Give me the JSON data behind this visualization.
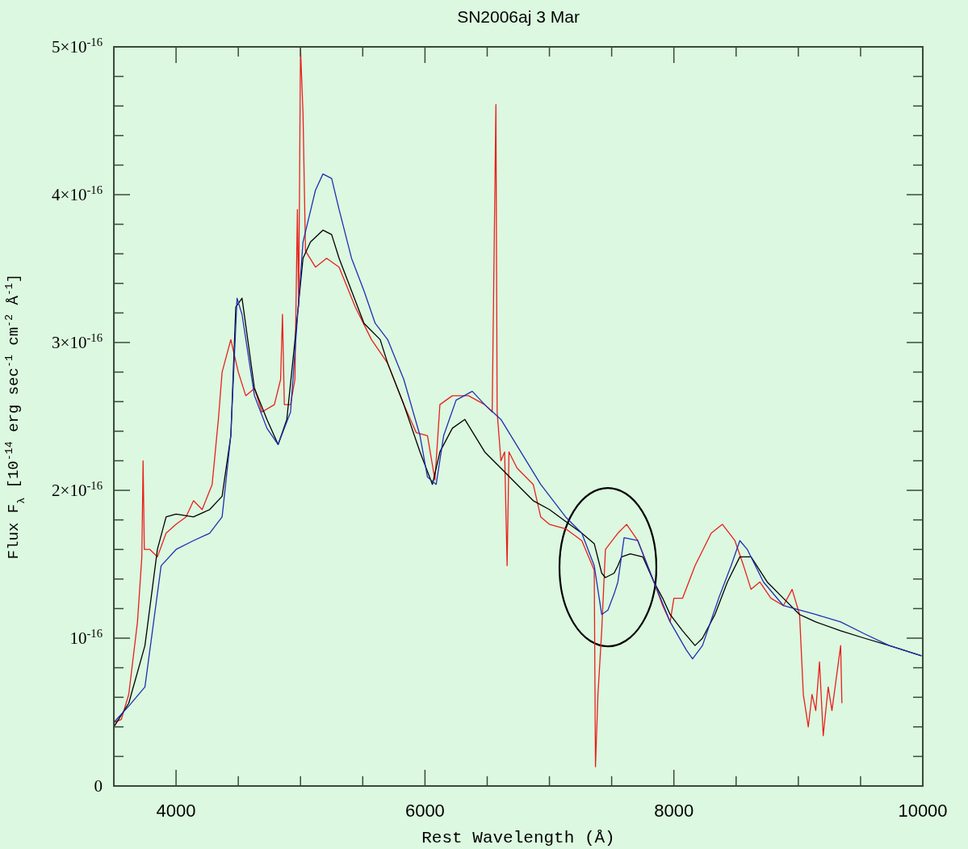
{
  "chart_data": {
    "type": "line",
    "title": "SN2006aj 3 Mar",
    "xlabel": "Rest Wavelength (Å)",
    "ylabel": "Flux F$_{λ}$ [10$^{-14}$ erg sec$^{-1}$ cm$^{-2}$ Å$^{-1}$]",
    "xlim": [
      3500,
      10000
    ],
    "ylim": [
      0,
      5e-16
    ],
    "xticks": [
      4000,
      {
        "value": 4500,
        "label": null
      },
      {
        "value": 5000,
        "label": null
      },
      {
        "value": 5500,
        "label": null
      },
      6000,
      {
        "value": 6500,
        "label": null
      },
      {
        "value": 7000,
        "label": null
      },
      {
        "value": 7500,
        "label": null
      },
      8000,
      {
        "value": 8500,
        "label": null
      },
      {
        "value": 9000,
        "label": null
      },
      {
        "value": 9500,
        "label": null
      },
      10000
    ],
    "yticks": [
      0,
      {
        "value": 2e-17,
        "label": null
      },
      {
        "value": 4e-17,
        "label": null
      },
      {
        "value": 6e-17,
        "label": null
      },
      {
        "value": 8e-17,
        "label": null
      },
      {
        "value": 1e-16,
        "label": "10$^{-16}$"
      },
      {
        "value": 1.2e-16,
        "label": null
      },
      {
        "value": 1.4e-16,
        "label": null
      },
      {
        "value": 1.6e-16,
        "label": null
      },
      {
        "value": 1.8e-16,
        "label": null
      },
      {
        "value": 2e-16,
        "label": "2×10$^{-16}$"
      },
      {
        "value": 2.2e-16,
        "label": null
      },
      {
        "value": 2.4e-16,
        "label": null
      },
      {
        "value": 2.6e-16,
        "label": null
      },
      {
        "value": 2.8e-16,
        "label": null
      },
      {
        "value": 3e-16,
        "label": "3×10$^{-16}$"
      },
      {
        "value": 3.2e-16,
        "label": null
      },
      {
        "value": 3.4e-16,
        "label": null
      },
      {
        "value": 3.6e-16,
        "label": null
      },
      {
        "value": 3.8e-16,
        "label": null
      },
      {
        "value": 4e-16,
        "label": "4×10$^{-16}$"
      },
      {
        "value": 4.2e-16,
        "label": null
      },
      {
        "value": 4.4e-16,
        "label": null
      },
      {
        "value": 4.6e-16,
        "label": null
      },
      {
        "value": 4.8e-16,
        "label": null
      },
      {
        "value": 5e-16,
        "label": "5×10$^{-16}$"
      }
    ],
    "grid": false,
    "line_style": "solid",
    "marker": "none",
    "series": [
      {
        "color": "#e8201c",
        "x": [
          3500,
          3560,
          3620,
          3690,
          3725,
          3735,
          3745,
          3790,
          3850,
          3920,
          4000,
          4080,
          4140,
          4210,
          4290,
          4340,
          4370,
          4440,
          4500,
          4560,
          4630,
          4690,
          4790,
          4840,
          4855,
          4870,
          4920,
          4955,
          4975,
          4985,
          5000,
          5020,
          5040,
          5120,
          5210,
          5310,
          5440,
          5570,
          5700,
          5830,
          5930,
          6020,
          6080,
          6120,
          6220,
          6350,
          6480,
          6540,
          6570,
          6580,
          6610,
          6640,
          6660,
          6675,
          6740,
          6870,
          6930,
          7000,
          7130,
          7260,
          7360,
          7370,
          7390,
          7420,
          7450,
          7550,
          7620,
          7710,
          7840,
          7910,
          7970,
          8000,
          8070,
          8170,
          8300,
          8390,
          8490,
          8560,
          8620,
          8690,
          8780,
          8880,
          8950,
          9010,
          9040,
          9080,
          9110,
          9140,
          9170,
          9200,
          9240,
          9270,
          9340,
          9350
        ],
        "values": [
          4.3e-17,
          4.5e-17,
          6.2e-17,
          1.11e-16,
          1.55e-16,
          2.2e-16,
          1.6e-16,
          1.6e-16,
          1.55e-16,
          1.71e-16,
          1.77e-16,
          1.82e-16,
          1.93e-16,
          1.87e-16,
          2.04e-16,
          2.48e-16,
          2.8e-16,
          3.02e-16,
          2.8e-16,
          2.64e-16,
          2.69e-16,
          2.53e-16,
          2.58e-16,
          2.75e-16,
          3.19e-16,
          2.58e-16,
          2.58e-16,
          2.75e-16,
          3.9e-16,
          3.24e-16,
          4.99e-16,
          4.55e-16,
          3.62e-16,
          3.51e-16,
          3.57e-16,
          3.51e-16,
          3.24e-16,
          3.02e-16,
          2.86e-16,
          2.58e-16,
          2.39e-16,
          2.37e-16,
          2.07e-16,
          2.58e-16,
          2.64e-16,
          2.64e-16,
          2.58e-16,
          2.53e-16,
          4.61e-16,
          2.53e-16,
          2.2e-16,
          2.26e-16,
          1.49e-16,
          2.26e-16,
          2.15e-16,
          2.04e-16,
          1.82e-16,
          1.77e-16,
          1.74e-16,
          1.66e-16,
          1.46e-16,
          1.3e-17,
          6.2e-17,
          1.05e-16,
          1.6e-16,
          1.71e-16,
          1.77e-16,
          1.66e-16,
          1.38e-16,
          1.22e-16,
          1.11e-16,
          1.27e-16,
          1.27e-16,
          1.49e-16,
          1.71e-16,
          1.77e-16,
          1.66e-16,
          1.49e-16,
          1.33e-16,
          1.38e-16,
          1.27e-16,
          1.22e-16,
          1.33e-16,
          1.16e-16,
          6.2e-17,
          4e-17,
          6.2e-17,
          5.1e-17,
          8.4e-17,
          3.4e-17,
          6.7e-17,
          5.1e-17,
          9.5e-17,
          5.6e-17
        ]
      },
      {
        "color": "#000000",
        "x": [
          3500,
          3620,
          3750,
          3850,
          3920,
          4000,
          4140,
          4270,
          4370,
          4440,
          4480,
          4530,
          4630,
          4730,
          4820,
          4890,
          4950,
          5020,
          5080,
          5180,
          5250,
          5310,
          5410,
          5510,
          5640,
          5700,
          5830,
          5960,
          6060,
          6120,
          6220,
          6320,
          6480,
          6610,
          6740,
          6870,
          7000,
          7130,
          7260,
          7360,
          7420,
          7450,
          7520,
          7550,
          7580,
          7650,
          7750,
          7840,
          7910,
          7970,
          8070,
          8170,
          8230,
          8330,
          8430,
          8530,
          8620,
          8750,
          8880,
          9010,
          9140,
          9340,
          9530,
          9730,
          9990
        ],
        "values": [
          4e-17,
          5.6e-17,
          9.5e-17,
          1.6e-16,
          1.82e-16,
          1.84e-16,
          1.82e-16,
          1.87e-16,
          1.96e-16,
          2.37e-16,
          3.24e-16,
          3.3e-16,
          2.69e-16,
          2.48e-16,
          2.31e-16,
          2.48e-16,
          2.97e-16,
          3.57e-16,
          3.68e-16,
          3.76e-16,
          3.73e-16,
          3.57e-16,
          3.35e-16,
          3.13e-16,
          3.02e-16,
          2.86e-16,
          2.58e-16,
          2.26e-16,
          2.04e-16,
          2.26e-16,
          2.42e-16,
          2.48e-16,
          2.26e-16,
          2.15e-16,
          2.04e-16,
          1.93e-16,
          1.87e-16,
          1.79e-16,
          1.71e-16,
          1.64e-16,
          1.44e-16,
          1.41e-16,
          1.44e-16,
          1.49e-16,
          1.55e-16,
          1.57e-16,
          1.55e-16,
          1.38e-16,
          1.27e-16,
          1.16e-16,
          1.05e-16,
          9.5e-17,
          1e-16,
          1.16e-16,
          1.38e-16,
          1.55e-16,
          1.55e-16,
          1.38e-16,
          1.27e-16,
          1.16e-16,
          1.11e-16,
          1.05e-16,
          1e-16,
          9.5e-17,
          8.8e-17
        ]
      },
      {
        "color": "#2030b0",
        "x": [
          3500,
          3620,
          3750,
          3880,
          4000,
          4140,
          4270,
          4370,
          4440,
          4490,
          4530,
          4630,
          4730,
          4820,
          4920,
          5020,
          5120,
          5180,
          5250,
          5310,
          5410,
          5510,
          5600,
          5700,
          5830,
          5960,
          6020,
          6090,
          6150,
          6250,
          6380,
          6480,
          6610,
          6770,
          6930,
          7130,
          7260,
          7360,
          7420,
          7470,
          7520,
          7550,
          7600,
          7710,
          7840,
          7970,
          8100,
          8150,
          8230,
          8360,
          8460,
          8530,
          8590,
          8720,
          8880,
          9010,
          9140,
          9340,
          9530,
          9730,
          9990
        ],
        "values": [
          4.3e-17,
          5.4e-17,
          6.7e-17,
          1.49e-16,
          1.6e-16,
          1.66e-16,
          1.71e-16,
          1.82e-16,
          2.37e-16,
          3.3e-16,
          3.19e-16,
          2.64e-16,
          2.42e-16,
          2.31e-16,
          2.53e-16,
          3.68e-16,
          4.03e-16,
          4.14e-16,
          4.11e-16,
          3.9e-16,
          3.57e-16,
          3.35e-16,
          3.13e-16,
          3.02e-16,
          2.75e-16,
          2.37e-16,
          2.09e-16,
          2.04e-16,
          2.37e-16,
          2.61e-16,
          2.67e-16,
          2.58e-16,
          2.48e-16,
          2.26e-16,
          2.04e-16,
          1.82e-16,
          1.71e-16,
          1.49e-16,
          1.16e-16,
          1.19e-16,
          1.3e-16,
          1.38e-16,
          1.68e-16,
          1.66e-16,
          1.38e-16,
          1.11e-16,
          9.2e-17,
          8.6e-17,
          9.5e-17,
          1.27e-16,
          1.49e-16,
          1.66e-16,
          1.6e-16,
          1.38e-16,
          1.22e-16,
          1.19e-16,
          1.16e-16,
          1.11e-16,
          1.03e-16,
          9.5e-17,
          8.8e-17
        ]
      }
    ]
  }
}
